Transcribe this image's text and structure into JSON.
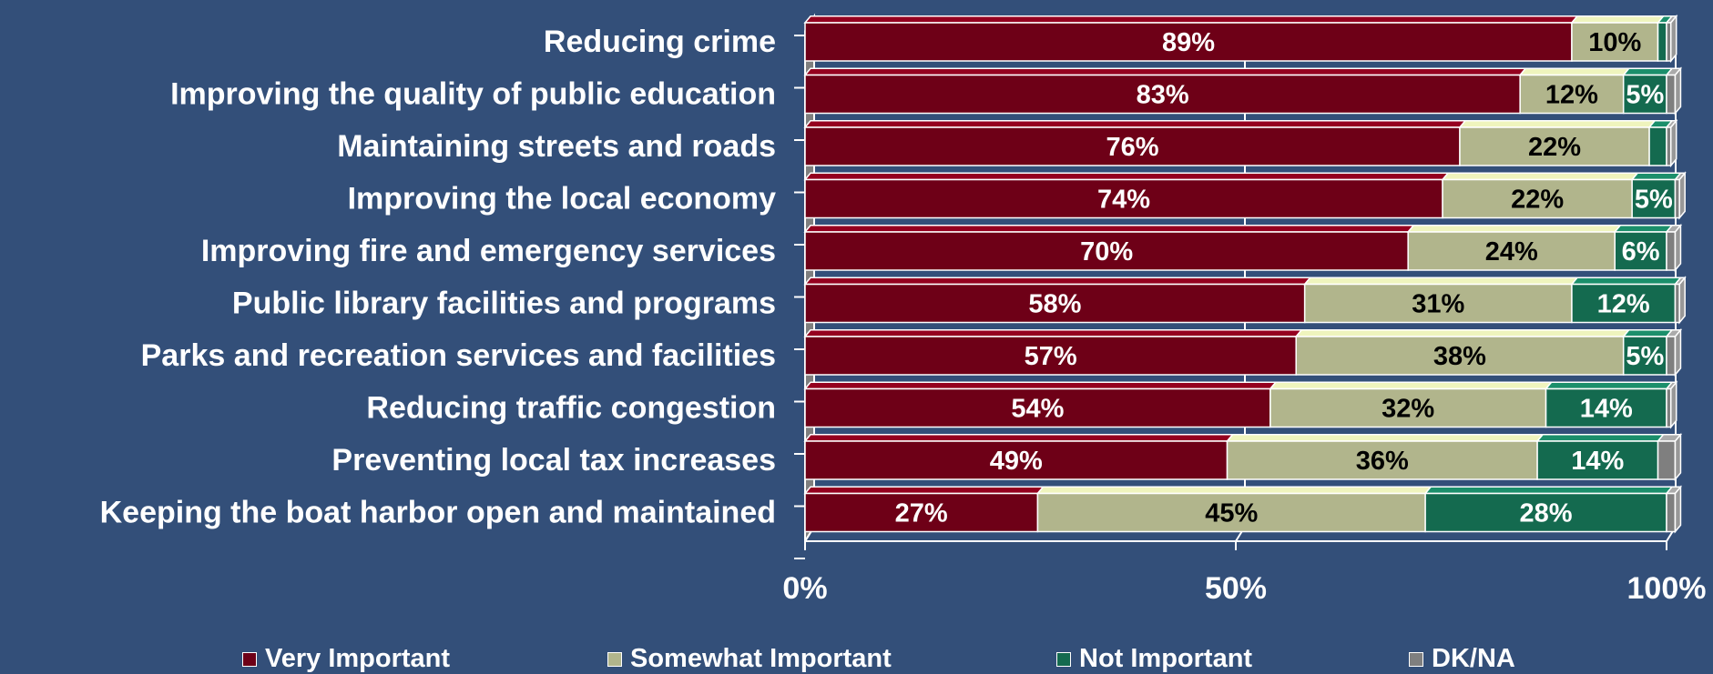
{
  "chart_data": {
    "type": "bar",
    "orientation": "horizontal",
    "stacked": true,
    "categories": [
      "Reducing crime",
      "Improving the quality of public education",
      "Maintaining streets and roads",
      "Improving the local economy",
      "Improving fire and emergency services",
      "Public library facilities and programs",
      "Parks and recreation services and facilities",
      "Reducing traffic congestion",
      "Preventing local tax increases",
      "Keeping the boat harbor open and maintained"
    ],
    "series": [
      {
        "name": "Very Important",
        "color": "#6e0017",
        "text_color": "#ffffff",
        "values": [
          89,
          83,
          76,
          74,
          70,
          58,
          57,
          54,
          49,
          27
        ],
        "labels": [
          "89%",
          "83%",
          "76%",
          "74%",
          "70%",
          "58%",
          "57%",
          "54%",
          "49%",
          "27%"
        ]
      },
      {
        "name": "Somewhat Important",
        "color": "#b1b58c",
        "text_color": "#000000",
        "values": [
          10,
          12,
          22,
          22,
          24,
          31,
          38,
          32,
          36,
          45
        ],
        "labels": [
          "10%",
          "12%",
          "22%",
          "22%",
          "24%",
          "31%",
          "38%",
          "32%",
          "36%",
          "45%"
        ]
      },
      {
        "name": "Not Important",
        "color": "#146a4f",
        "text_color": "#ffffff",
        "values": [
          1,
          5,
          2,
          5,
          6,
          12,
          5,
          14,
          14,
          28
        ],
        "labels": [
          "",
          "5%",
          "",
          "5%",
          "6%",
          "12%",
          "5%",
          "14%",
          "14%",
          "28%"
        ]
      },
      {
        "name": "DK/NA",
        "color": "#7f7f7f",
        "text_color": "#ffffff",
        "values": [
          0.5,
          1,
          0.5,
          0.5,
          1,
          0.5,
          1,
          0.5,
          2,
          1
        ],
        "labels": [
          "",
          "",
          "",
          "",
          "",
          "",
          "",
          "",
          "",
          ""
        ]
      }
    ],
    "xlim": [
      0,
      100
    ],
    "xticks": [
      0,
      50,
      100
    ],
    "xtick_labels": [
      "0%",
      "50%",
      "100%"
    ],
    "grid": true,
    "legend_position": "bottom",
    "colors": {
      "background": "#334f79",
      "grid": "#ffffff",
      "wall": "#7f7f7f"
    }
  }
}
